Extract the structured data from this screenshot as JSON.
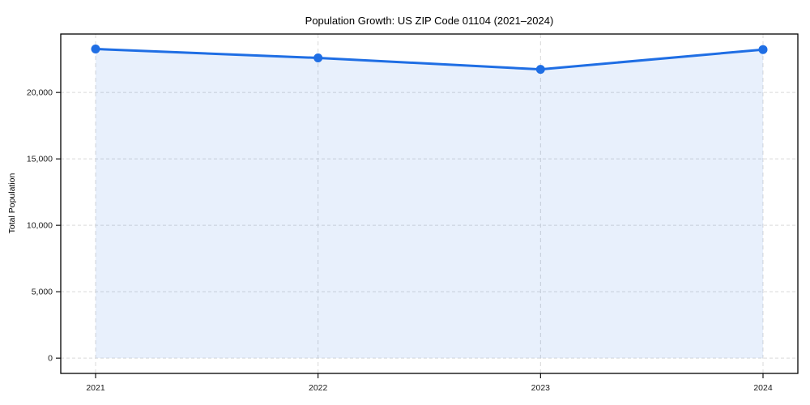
{
  "chart_data": {
    "type": "area",
    "title": "Population Growth: US ZIP Code 01104 (2021–2024)",
    "xlabel": "",
    "ylabel": "Total Population",
    "categories": [
      "2021",
      "2022",
      "2023",
      "2024"
    ],
    "x": [
      2021,
      2022,
      2023,
      2024
    ],
    "values": [
      23270,
      22600,
      21740,
      23230
    ],
    "series": [
      {
        "name": "Total Population",
        "values": [
          23270,
          22600,
          21740,
          23230
        ]
      }
    ],
    "yticks": [
      0,
      5000,
      10000,
      15000,
      20000
    ],
    "ytick_labels": [
      "0",
      "5,000",
      "10,000",
      "15,000",
      "20,000"
    ],
    "xtick_labels": [
      "2021",
      "2022",
      "2023",
      "2024"
    ],
    "ylim": [
      -1150,
      24400
    ],
    "grid": true,
    "grid_style": "dashed",
    "legend": "none",
    "marker": "circle",
    "fill_to_zero": true,
    "colors": {
      "line": "#1f6ee4",
      "fill": "#e8f0fc",
      "fill_opacity": 0.1,
      "grid": "#d9d9d9",
      "axis": "#000000",
      "text": "#1a1a1a",
      "background": "#ffffff"
    }
  }
}
